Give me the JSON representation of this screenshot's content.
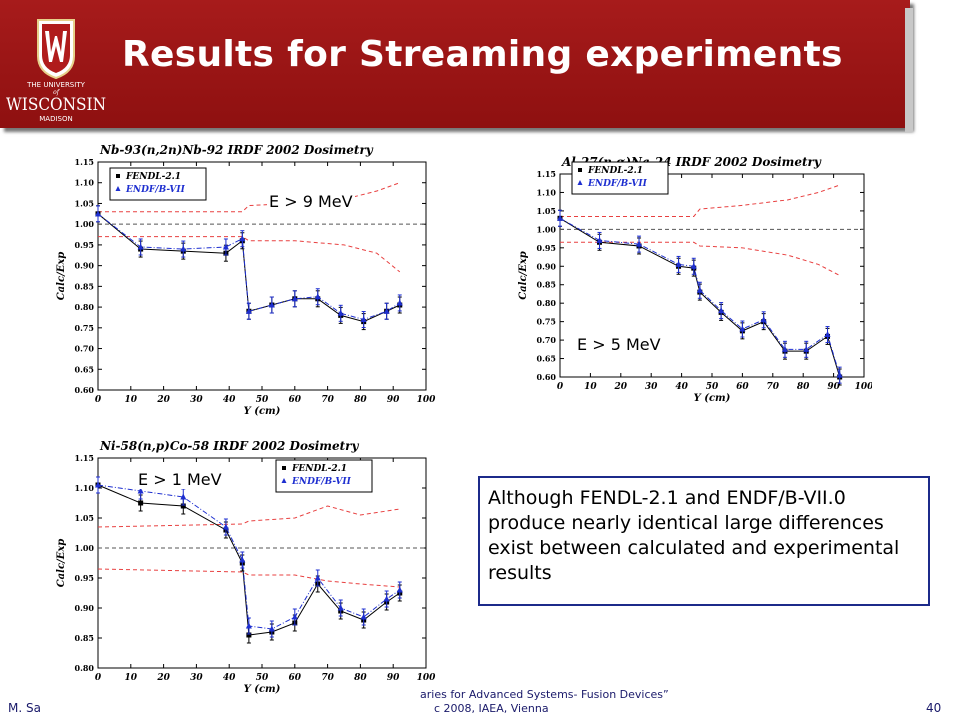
{
  "slide": {
    "title": "Results for Streaming experiments",
    "logo": {
      "line1": "THE UNIVERSITY",
      "line2": "of",
      "line3": "WISCONSIN",
      "line4": "MADISON"
    },
    "colors": {
      "banner": "#9b1414",
      "text": "#ffffff",
      "note_border": "#1c2a8a",
      "fendl": "#000000",
      "endf": "#1e2fd0",
      "band": "#e84040"
    }
  },
  "energy_labels": {
    "nb": "E > 9 MeV",
    "al": "E > 5 MeV",
    "ni": "E > 1 MeV"
  },
  "note": "Although FENDL-2.1 and ENDF/B-VII.0 produce nearly identical large differences exist between calculated and experimental results",
  "footer": {
    "left": "M. Sa",
    "mid_line1": "aries for Advanced Systems- Fusion Devices”",
    "mid_line2": "c 2008, IAEA, Vienna",
    "page": "40"
  },
  "chart_data": [
    {
      "type": "line",
      "title": "Nb-93(n,2n)Nb-92 IRDF 2002 Dosimetry",
      "xlabel": "Y (cm)",
      "ylabel": "Calc/Exp",
      "xlim": [
        0,
        100
      ],
      "ylim": [
        0.6,
        1.15
      ],
      "xticks": [
        "0",
        "10",
        "20",
        "30",
        "40",
        "50",
        "60",
        "70",
        "80",
        "90",
        "100"
      ],
      "yticks": [
        "0.60",
        "0.65",
        "0.70",
        "0.75",
        "0.80",
        "0.85",
        "0.90",
        "0.95",
        "1.00",
        "1.05",
        "1.10",
        "1.15"
      ],
      "x": [
        0,
        13,
        26,
        39,
        44,
        46,
        53,
        60,
        67,
        74,
        81,
        88,
        92
      ],
      "series": [
        {
          "name": "FENDL-2.1",
          "values": [
            1.025,
            0.94,
            0.935,
            0.93,
            0.96,
            0.79,
            0.805,
            0.82,
            0.82,
            0.78,
            0.765,
            0.79,
            0.805
          ]
        },
        {
          "name": "ENDF/B-VII",
          "values": [
            1.025,
            0.945,
            0.94,
            0.945,
            0.965,
            0.79,
            0.805,
            0.82,
            0.825,
            0.785,
            0.77,
            0.79,
            0.81
          ]
        }
      ],
      "band_upper": {
        "x": [
          0,
          44,
          46,
          60,
          75,
          85,
          92
        ],
        "y": [
          1.03,
          1.03,
          1.045,
          1.05,
          1.06,
          1.08,
          1.1
        ]
      },
      "band_lower": {
        "x": [
          0,
          44,
          46,
          60,
          75,
          85,
          92
        ],
        "y": [
          0.97,
          0.97,
          0.96,
          0.96,
          0.95,
          0.93,
          0.885
        ]
      },
      "reference": 1.0
    },
    {
      "type": "line",
      "title": "Al-27(n,α)Na-24 IRDF 2002 Dosimetry",
      "xlabel": "Y (cm)",
      "ylabel": "Calc/Exp",
      "xlim": [
        0,
        100
      ],
      "ylim": [
        0.6,
        1.15
      ],
      "xticks": [
        "0",
        "10",
        "20",
        "30",
        "40",
        "50",
        "60",
        "70",
        "80",
        "90",
        "100"
      ],
      "yticks": [
        "0.60",
        "0.65",
        "0.70",
        "0.75",
        "0.80",
        "0.85",
        "0.90",
        "0.95",
        "1.00",
        "1.05",
        "1.10",
        "1.15"
      ],
      "x": [
        0,
        13,
        26,
        39,
        44,
        46,
        53,
        60,
        67,
        74,
        81,
        88,
        92
      ],
      "series": [
        {
          "name": "FENDL-2.1",
          "values": [
            1.03,
            0.965,
            0.955,
            0.9,
            0.895,
            0.83,
            0.775,
            0.725,
            0.75,
            0.67,
            0.67,
            0.71,
            0.6
          ]
        },
        {
          "name": "ENDF/B-VII",
          "values": [
            1.03,
            0.97,
            0.96,
            0.905,
            0.9,
            0.835,
            0.78,
            0.73,
            0.755,
            0.675,
            0.675,
            0.715,
            0.605
          ]
        }
      ],
      "band_upper": {
        "x": [
          0,
          44,
          46,
          60,
          75,
          85,
          92
        ],
        "y": [
          1.035,
          1.035,
          1.055,
          1.065,
          1.08,
          1.1,
          1.12
        ]
      },
      "band_lower": {
        "x": [
          0,
          44,
          46,
          60,
          75,
          85,
          92
        ],
        "y": [
          0.965,
          0.965,
          0.955,
          0.95,
          0.93,
          0.905,
          0.875
        ]
      },
      "reference": 1.0
    },
    {
      "type": "line",
      "title": "Ni-58(n,p)Co-58 IRDF 2002 Dosimetry",
      "xlabel": "Y (cm)",
      "ylabel": "Calc/Exp",
      "xlim": [
        0,
        100
      ],
      "ylim": [
        0.8,
        1.15
      ],
      "xticks": [
        "0",
        "10",
        "20",
        "30",
        "40",
        "50",
        "60",
        "70",
        "80",
        "90",
        "100"
      ],
      "yticks": [
        "0.80",
        "0.85",
        "0.90",
        "0.95",
        "1.00",
        "1.05",
        "1.10",
        "1.15"
      ],
      "x": [
        0,
        13,
        26,
        39,
        44,
        46,
        53,
        60,
        67,
        74,
        81,
        88,
        92
      ],
      "series": [
        {
          "name": "FENDL-2.1",
          "values": [
            1.105,
            1.075,
            1.07,
            1.03,
            0.975,
            0.855,
            0.86,
            0.875,
            0.94,
            0.895,
            0.88,
            0.91,
            0.925
          ]
        },
        {
          "name": "ENDF/B-VII",
          "values": [
            1.105,
            1.095,
            1.085,
            1.035,
            0.98,
            0.87,
            0.865,
            0.885,
            0.95,
            0.9,
            0.885,
            0.915,
            0.93
          ]
        }
      ],
      "band_upper": {
        "x": [
          0,
          44,
          46,
          60,
          70,
          80,
          92
        ],
        "y": [
          1.035,
          1.04,
          1.045,
          1.05,
          1.07,
          1.055,
          1.065
        ]
      },
      "band_lower": {
        "x": [
          0,
          44,
          46,
          60,
          70,
          80,
          92
        ],
        "y": [
          0.965,
          0.96,
          0.955,
          0.955,
          0.945,
          0.94,
          0.935
        ]
      },
      "reference": 1.0
    }
  ]
}
